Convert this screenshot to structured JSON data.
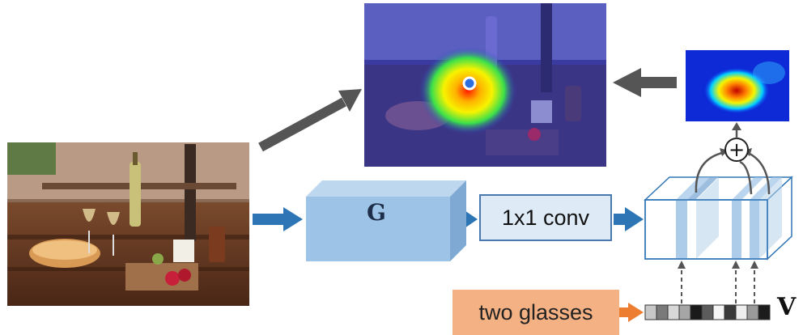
{
  "diagram": {
    "backbone_label": "G",
    "conv_label": "1x1 conv",
    "query_label": "two glasses",
    "vector_label": "V",
    "plus_symbol": "+",
    "query_vector_cells": [
      "#c8c8c8",
      "#7a7a7a",
      "#d8d8d8",
      "#a6a6a6",
      "#1a1a1a",
      "#5c5c5c",
      "#f5f5f5",
      "#3a3a3a",
      "#eeeeee",
      "#9a9a9a",
      "#1c1c1c"
    ],
    "highlighted_channels": 3
  },
  "colors": {
    "flow_arrow": "#2e75b6",
    "gray_arrow": "#555555",
    "query_arrow": "#ed7d31",
    "box_fill": "#9dc3e6",
    "box_stroke": "#4a79b0"
  }
}
